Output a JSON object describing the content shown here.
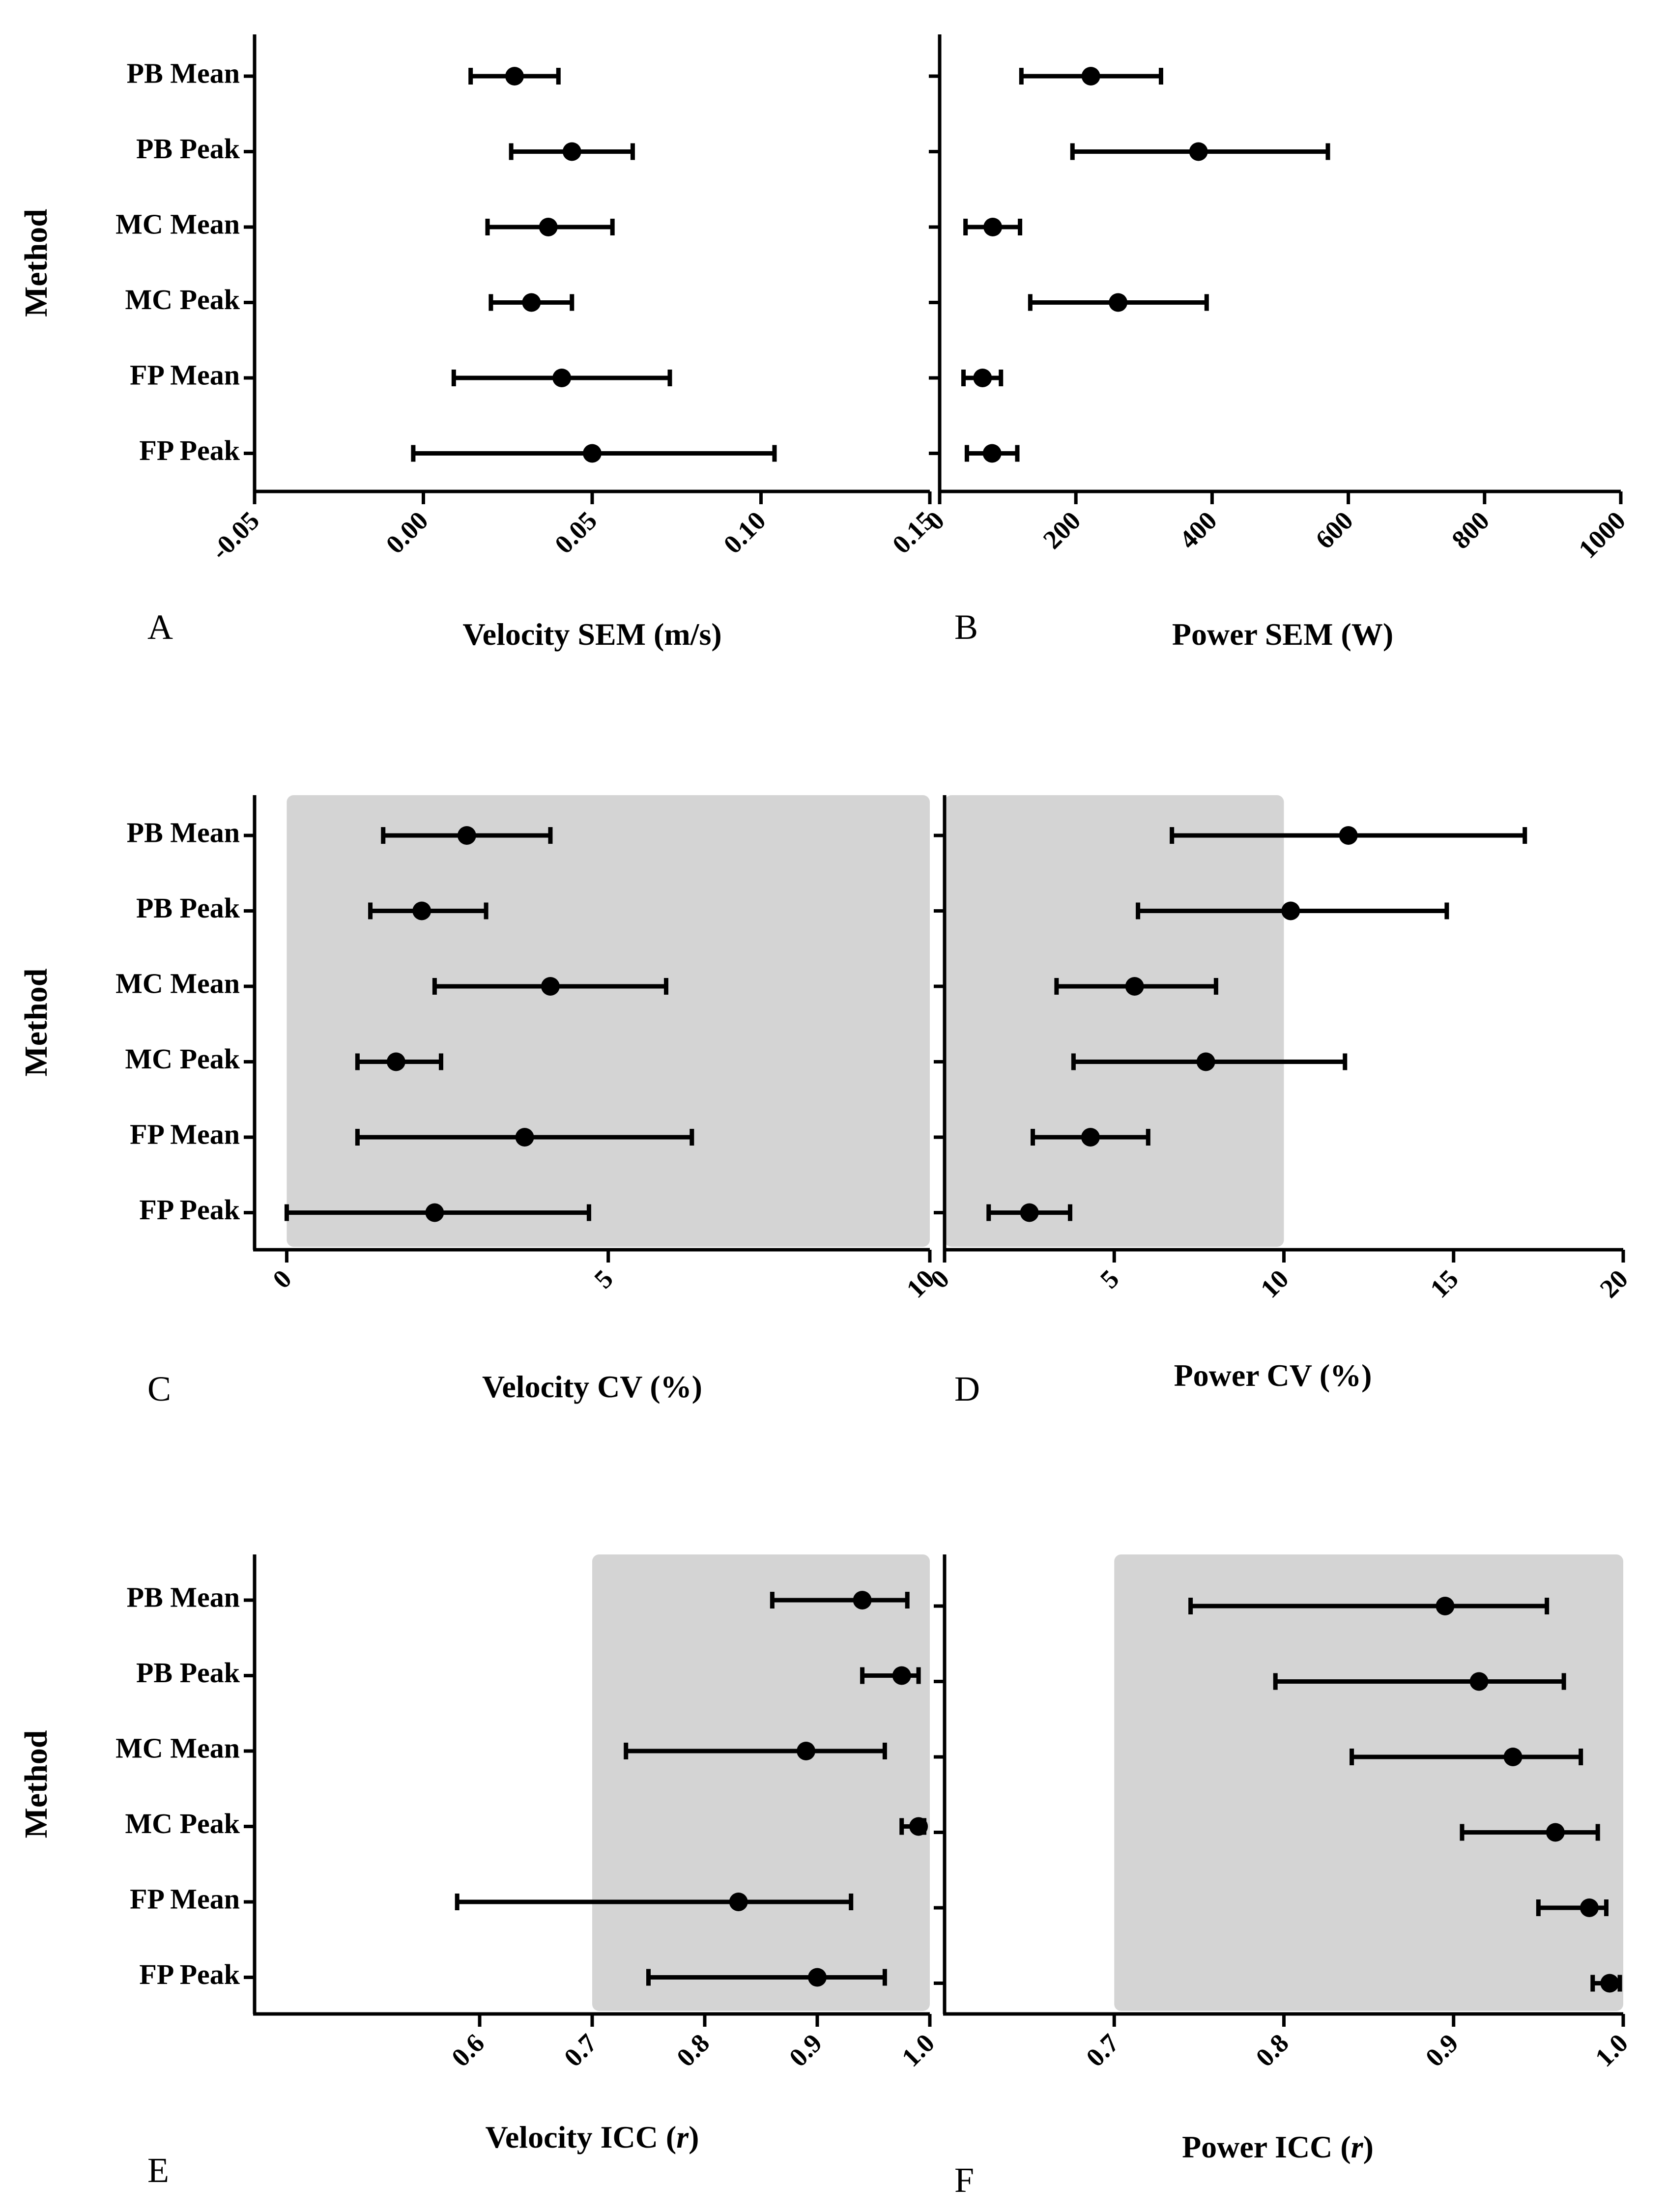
{
  "figure": {
    "y_axis_title": "Method"
  },
  "chart_data": [
    {
      "id": "A",
      "type": "scatter",
      "letter": "A",
      "xlabel": "Velocity SEM (m/s)",
      "ylabel": "Method",
      "xlim": [
        -0.05,
        0.15
      ],
      "xticks": [
        -0.05,
        0.0,
        0.05,
        0.1,
        0.15
      ],
      "xtick_labels": [
        "-0.05",
        "0.00",
        "0.05",
        "0.10",
        "0.15"
      ],
      "categories": [
        "PB Mean",
        "PB Peak",
        "MC Mean",
        "MC Peak",
        "FP Mean",
        "FP Peak"
      ],
      "points": [
        {
          "value": 0.027,
          "low": 0.014,
          "high": 0.04
        },
        {
          "value": 0.044,
          "low": 0.026,
          "high": 0.062
        },
        {
          "value": 0.037,
          "low": 0.019,
          "high": 0.056
        },
        {
          "value": 0.032,
          "low": 0.02,
          "high": 0.044
        },
        {
          "value": 0.041,
          "low": 0.009,
          "high": 0.073
        },
        {
          "value": 0.05,
          "low": -0.003,
          "high": 0.104
        }
      ],
      "shade": null
    },
    {
      "id": "B",
      "type": "scatter",
      "letter": "B",
      "xlabel": "Power SEM (W)",
      "ylabel": "Method",
      "xlim": [
        0,
        1000
      ],
      "xticks": [
        0,
        200,
        400,
        600,
        800,
        1000
      ],
      "xtick_labels": [
        "0",
        "200",
        "400",
        "600",
        "800",
        "1000"
      ],
      "categories": [
        "PB Mean",
        "PB Peak",
        "MC Mean",
        "MC Peak",
        "FP Mean",
        "FP Peak"
      ],
      "points": [
        {
          "value": 222,
          "low": 120,
          "high": 325
        },
        {
          "value": 380,
          "low": 195,
          "high": 570
        },
        {
          "value": 78,
          "low": 38,
          "high": 118
        },
        {
          "value": 262,
          "low": 133,
          "high": 392
        },
        {
          "value": 63,
          "low": 35,
          "high": 90
        },
        {
          "value": 77,
          "low": 40,
          "high": 114
        }
      ],
      "shade": null
    },
    {
      "id": "C",
      "type": "scatter",
      "letter": "C",
      "xlabel": "Velocity CV (%)",
      "ylabel": "Method",
      "xlim": [
        -0.5,
        10
      ],
      "xticks": [
        0,
        5,
        10
      ],
      "xtick_labels": [
        "0",
        "5",
        "10"
      ],
      "categories": [
        "PB Mean",
        "PB Peak",
        "MC Mean",
        "MC Peak",
        "FP Mean",
        "FP Peak"
      ],
      "points": [
        {
          "value": 2.8,
          "low": 1.5,
          "high": 4.1
        },
        {
          "value": 2.1,
          "low": 1.3,
          "high": 3.1
        },
        {
          "value": 4.1,
          "low": 2.3,
          "high": 5.9
        },
        {
          "value": 1.7,
          "low": 1.1,
          "high": 2.4
        },
        {
          "value": 3.7,
          "low": 1.1,
          "high": 6.3
        },
        {
          "value": 2.3,
          "low": 0.0,
          "high": 4.7
        }
      ],
      "shade": [
        0,
        10
      ]
    },
    {
      "id": "D",
      "type": "scatter",
      "letter": "D",
      "xlabel": "Power CV (%)",
      "ylabel": "Method",
      "xlim": [
        0,
        20
      ],
      "xticks": [
        0,
        5,
        10,
        15,
        20
      ],
      "xtick_labels": [
        "0",
        "5",
        "10",
        "15",
        "20"
      ],
      "categories": [
        "PB Mean",
        "PB Peak",
        "MC Mean",
        "MC Peak",
        "FP Mean",
        "FP Peak"
      ],
      "points": [
        {
          "value": 11.9,
          "low": 6.7,
          "high": 17.1
        },
        {
          "value": 10.2,
          "low": 5.7,
          "high": 14.8
        },
        {
          "value": 5.6,
          "low": 3.3,
          "high": 8.0
        },
        {
          "value": 7.7,
          "low": 3.8,
          "high": 11.8
        },
        {
          "value": 4.3,
          "low": 2.6,
          "high": 6.0
        },
        {
          "value": 2.5,
          "low": 1.3,
          "high": 3.7
        }
      ],
      "shade": [
        0,
        10
      ]
    },
    {
      "id": "E",
      "type": "scatter",
      "letter": "E",
      "xlabel": "Velocity ICC (r)",
      "xlabel_main": "Velocity ICC (",
      "xlabel_italic": "r",
      "xlabel_close": ")",
      "ylabel": "Method",
      "xlim": [
        0.4,
        1.0
      ],
      "xticks": [
        0.6,
        0.7,
        0.8,
        0.9,
        1.0
      ],
      "xtick_labels": [
        "0.6",
        "0.7",
        "0.8",
        "0.9",
        "1.0"
      ],
      "categories": [
        "PB Mean",
        "PB Peak",
        "MC Mean",
        "MC Peak",
        "FP Mean",
        "FP Peak"
      ],
      "points": [
        {
          "value": 0.94,
          "low": 0.86,
          "high": 0.98
        },
        {
          "value": 0.975,
          "low": 0.94,
          "high": 0.99
        },
        {
          "value": 0.89,
          "low": 0.73,
          "high": 0.96
        },
        {
          "value": 0.99,
          "low": 0.975,
          "high": 0.995
        },
        {
          "value": 0.83,
          "low": 0.58,
          "high": 0.93
        },
        {
          "value": 0.9,
          "low": 0.75,
          "high": 0.96
        }
      ],
      "shade": [
        0.7,
        1.0
      ]
    },
    {
      "id": "F",
      "type": "scatter",
      "letter": "F",
      "xlabel": "Power ICC (r)",
      "xlabel_main": "Power ICC (",
      "xlabel_italic": "r",
      "xlabel_close": ")",
      "ylabel": "Method",
      "xlim": [
        0.6,
        1.0
      ],
      "xticks": [
        0.7,
        0.8,
        0.9,
        1.0
      ],
      "xtick_labels": [
        "0.7",
        "0.8",
        "0.9",
        "1.0"
      ],
      "categories": [
        "PB Mean",
        "PB Peak",
        "MC Mean",
        "MC Peak",
        "FP Mean",
        "FP Peak"
      ],
      "points": [
        {
          "value": 0.895,
          "low": 0.745,
          "high": 0.955
        },
        {
          "value": 0.915,
          "low": 0.795,
          "high": 0.965
        },
        {
          "value": 0.935,
          "low": 0.84,
          "high": 0.975
        },
        {
          "value": 0.96,
          "low": 0.905,
          "high": 0.985
        },
        {
          "value": 0.98,
          "low": 0.95,
          "high": 0.99
        },
        {
          "value": 0.992,
          "low": 0.982,
          "high": 0.998
        }
      ],
      "shade": [
        0.7,
        1.0
      ]
    }
  ]
}
